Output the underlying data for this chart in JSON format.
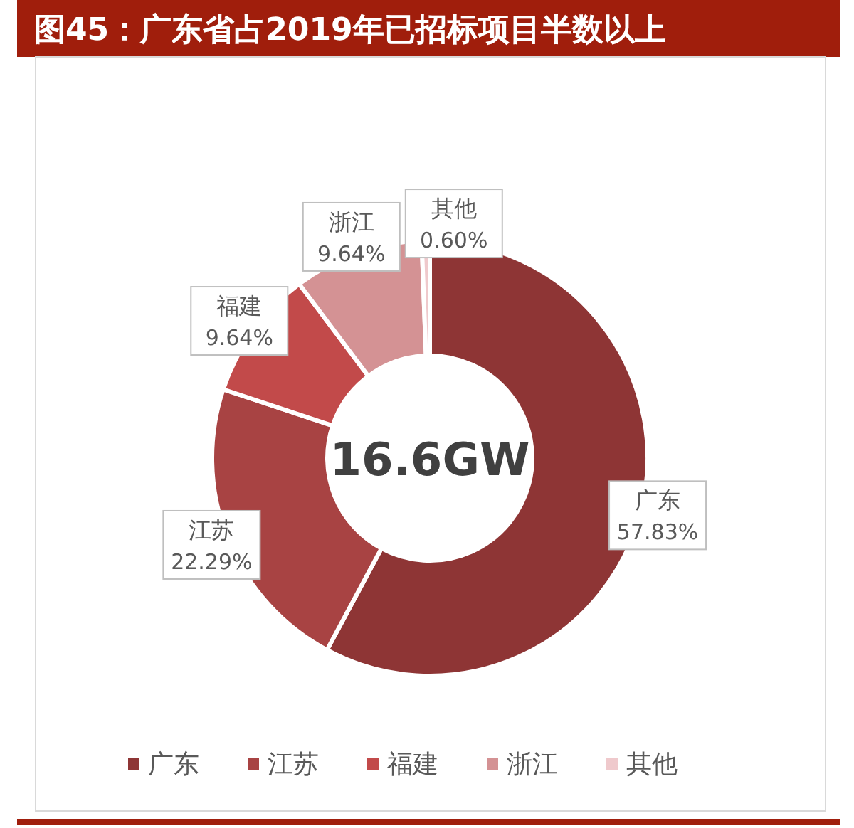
{
  "chart_data": {
    "type": "donut",
    "title": "图45：广东省占2019年已招标项目半数以上",
    "categories": [
      "广东",
      "江苏",
      "福建",
      "浙江",
      "其他"
    ],
    "values": [
      57.83,
      22.29,
      9.64,
      9.64,
      0.6
    ],
    "value_labels": [
      "57.83%",
      "22.29%",
      "9.64%",
      "9.64%",
      "0.60%"
    ],
    "colors": [
      "#8e3535",
      "#a84343",
      "#c24a4a",
      "#d49294",
      "#efc9cc"
    ],
    "annotations": [
      "16.6GW"
    ],
    "legend": "bottom"
  }
}
